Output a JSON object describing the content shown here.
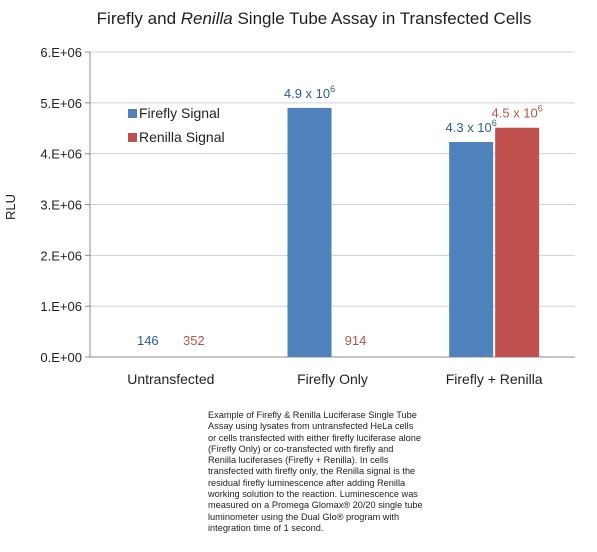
{
  "chart_data": {
    "type": "bar",
    "title": {
      "part1": "Firefly and ",
      "part2": "Renilla",
      "part3": " Single Tube Assay in Transfected Cells"
    },
    "ylabel": "RLU",
    "ylim": [
      0,
      6000000
    ],
    "yticks": [
      {
        "value": 0,
        "label": "0.E+00"
      },
      {
        "value": 1000000,
        "label": "1.E+06"
      },
      {
        "value": 2000000,
        "label": "2.E+06"
      },
      {
        "value": 3000000,
        "label": "3.E+06"
      },
      {
        "value": 4000000,
        "label": "4.E+06"
      },
      {
        "value": 5000000,
        "label": "5.E+06"
      },
      {
        "value": 6000000,
        "label": "6.E+06"
      }
    ],
    "grid": true,
    "legend_position": "upper-left",
    "categories": [
      "Untransfected",
      "Firefly Only",
      "Firefly + Renilla"
    ],
    "series": [
      {
        "name": "Firefly Signal",
        "color": "#4f81bd",
        "label_color": "#2e5c95",
        "values": [
          146,
          4900000,
          4230000
        ],
        "labels": [
          {
            "base": "146",
            "exp": ""
          },
          {
            "base": "4.9 x 10",
            "exp": "6"
          },
          {
            "base": "4.3 x 10",
            "exp": "6"
          }
        ]
      },
      {
        "name": "Renilla Signal",
        "color": "#c0504d",
        "label_color": "#b2544f",
        "values": [
          352,
          914,
          4510000
        ],
        "labels": [
          {
            "base": "352",
            "exp": ""
          },
          {
            "base": "914",
            "exp": ""
          },
          {
            "base": "4.5 x 10",
            "exp": "6"
          }
        ]
      }
    ]
  },
  "caption": "Example of Firefly & Renilla Luciferase Single Tube Assay using lysates from untransfected HeLa cells or cells transfected with either firefly luciferase alone (Firefly Only) or co-transfected with firefly and Renilla luciferases (Firefly + Renilla). In cells transfected with firefly only, the Renilla signal is the residual firefly luminescence after adding Renilla working solution to the reaction. Luminescence was measured on a Promega Glomax® 20/20 single tube luminometer using the Dual Glo® program with integration time of 1 second."
}
